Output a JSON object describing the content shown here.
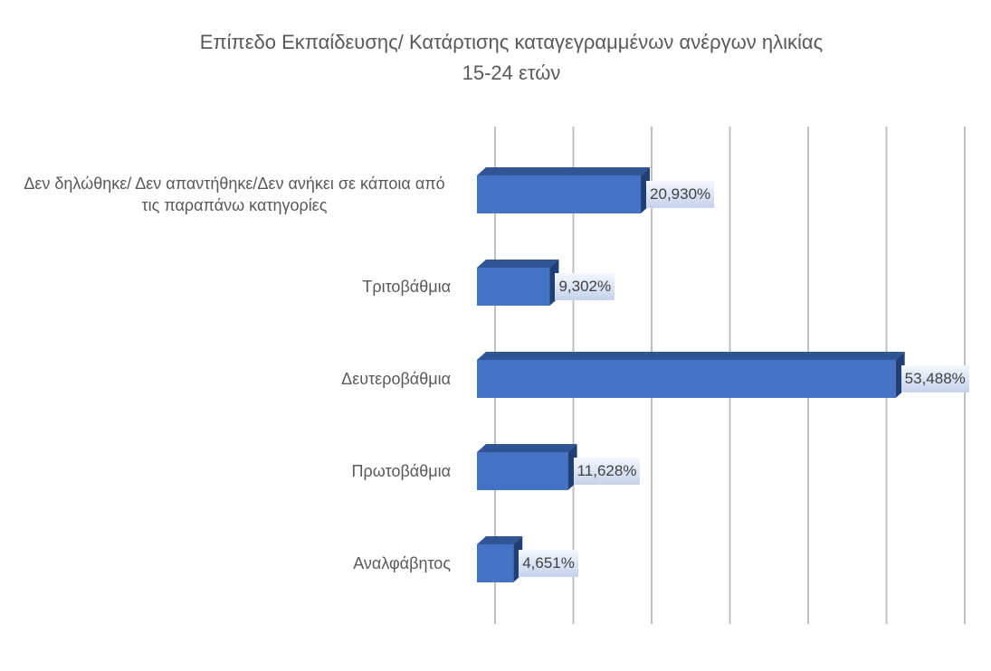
{
  "chart_data": {
    "type": "bar",
    "orientation": "horizontal",
    "title": [
      "Επίπεδο Εκπαίδευσης/ Κατάρτισης καταγεγραμμένων ανέργων ηλικίας",
      "15-24 ετών"
    ],
    "categories": [
      "Δεν δηλώθηκε/ Δεν απαντήθηκε/Δεν ανήκει σε κάποια από τις παραπάνω κατηγορίες",
      "Τριτοβάθμια",
      "Δευτεροβάθμια",
      "Πρωτοβάθμια",
      "Αναλφάβητος"
    ],
    "values": [
      20.93,
      9.302,
      53.488,
      11.628,
      4.651
    ],
    "value_labels": [
      "20,930%",
      "9,302%",
      "53,488%",
      "11,628%",
      "4,651%"
    ],
    "color": "#4472c4",
    "xlim": [
      0,
      60
    ],
    "xticks": [
      0,
      10,
      20,
      30,
      40,
      50,
      60
    ],
    "grid": true
  }
}
